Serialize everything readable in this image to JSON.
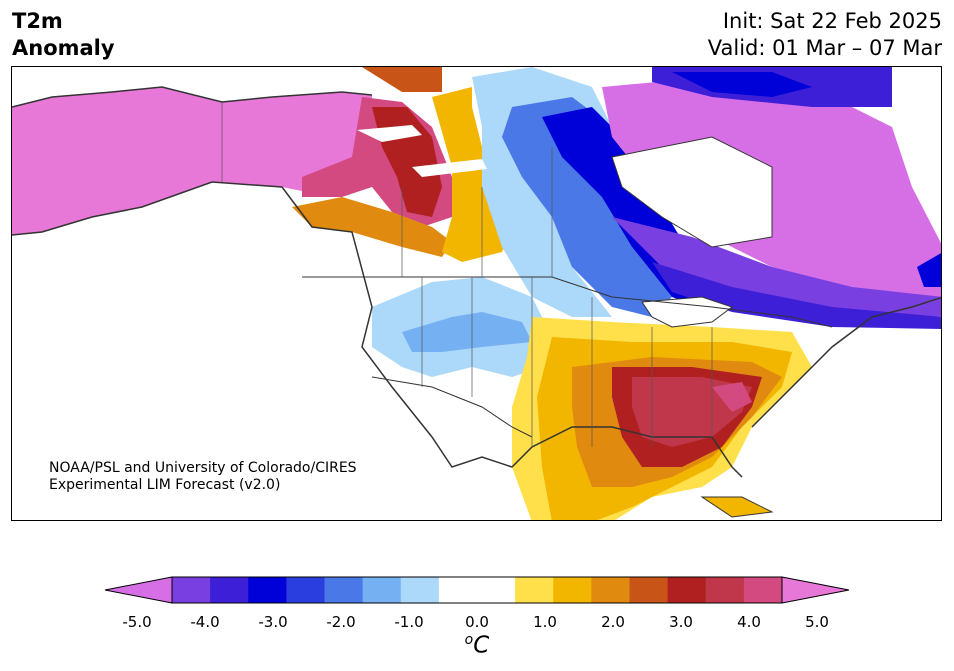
{
  "title": {
    "line1": "T2m",
    "line2": "Anomaly"
  },
  "header": {
    "init": "Init: Sat 22 Feb 2025",
    "valid": "Valid: 01 Mar – 07 Mar"
  },
  "credit": {
    "line1": "NOAA/PSL and University of Colorado/CIRES",
    "line2": "Experimental LIM Forecast (v2.0)"
  },
  "colorbar": {
    "ticks": [
      "-5.0",
      "-4.0",
      "-3.0",
      "-2.0",
      "-1.0",
      "0.0",
      "1.0",
      "2.0",
      "3.0",
      "4.0",
      "5.0"
    ],
    "unit_sup": "o",
    "unit": "C",
    "colors": [
      "#d66fe6",
      "#a254e0",
      "#7a3fe0",
      "#3d1fd8",
      "#0000d8",
      "#2a3ee0",
      "#4a78e6",
      "#74b0f2",
      "#acd8fa",
      "#ffffff",
      "#ffffff",
      "#ffe04a",
      "#f2b600",
      "#e08a10",
      "#c85418",
      "#b02020",
      "#c0364a",
      "#d24a80",
      "#e060b8",
      "#e878d8"
    ]
  }
}
